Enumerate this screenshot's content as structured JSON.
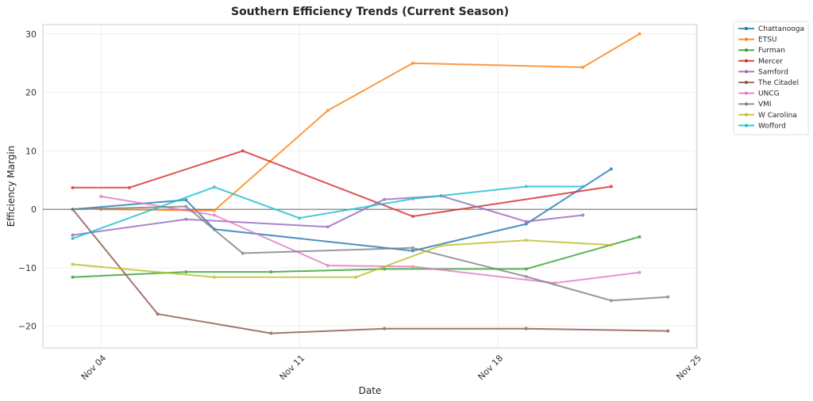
{
  "chart_data": {
    "type": "line",
    "title": "Southern Efficiency Trends (Current Season)",
    "xlabel": "Date",
    "ylabel": "Efficiency Margin",
    "x_unit": "day of November",
    "xlim": [
      1.95,
      25.03
    ],
    "ylim": [
      -23.7,
      31.6
    ],
    "x_ticks": [
      {
        "value": 4,
        "label": "Nov 04"
      },
      {
        "value": 11,
        "label": "Nov 11"
      },
      {
        "value": 18,
        "label": "Nov 18"
      },
      {
        "value": 25,
        "label": "Nov 25"
      }
    ],
    "y_ticks": [
      {
        "value": -20,
        "label": "−20"
      },
      {
        "value": -10,
        "label": "−10"
      },
      {
        "value": 0,
        "label": "0"
      },
      {
        "value": 10,
        "label": "10"
      },
      {
        "value": 20,
        "label": "20"
      },
      {
        "value": 30,
        "label": "30"
      }
    ],
    "grid": true,
    "zero_line": true,
    "legend_position": "outside-top-right",
    "series": [
      {
        "name": "Chattanooga",
        "color": "#1f77b4",
        "x": [
          3,
          7,
          8,
          15,
          19,
          22
        ],
        "y": [
          0.0,
          1.6,
          -3.4,
          -7.1,
          -2.5,
          6.9
        ]
      },
      {
        "name": "ETSU",
        "color": "#ff7f0e",
        "x": [
          4,
          8,
          12,
          15,
          21,
          23
        ],
        "y": [
          0.0,
          -0.2,
          16.9,
          25.0,
          24.3,
          30.0
        ]
      },
      {
        "name": "Furman",
        "color": "#2ca02c",
        "x": [
          3,
          7,
          10,
          14,
          19,
          23
        ],
        "y": [
          -11.6,
          -10.7,
          -10.7,
          -10.2,
          -10.2,
          -4.7
        ]
      },
      {
        "name": "Mercer",
        "color": "#d62728",
        "x": [
          3,
          5,
          9,
          15,
          22
        ],
        "y": [
          3.7,
          3.7,
          10.0,
          -1.2,
          3.9
        ]
      },
      {
        "name": "Samford",
        "color": "#9467bd",
        "x": [
          3,
          7,
          12,
          14,
          16,
          19,
          21
        ],
        "y": [
          -4.4,
          -1.7,
          -3.0,
          1.7,
          2.3,
          -2.1,
          -1.0
        ]
      },
      {
        "name": "The Citadel",
        "color": "#8c564b",
        "x": [
          3,
          6,
          10,
          14,
          19,
          24
        ],
        "y": [
          0.0,
          -17.9,
          -21.2,
          -20.4,
          -20.4,
          -20.8
        ]
      },
      {
        "name": "UNCG",
        "color": "#e377c2",
        "x": [
          4,
          8,
          12,
          15,
          20,
          23
        ],
        "y": [
          2.2,
          -1.0,
          -9.6,
          -9.8,
          -12.6,
          -10.8
        ]
      },
      {
        "name": "VMI",
        "color": "#7f7f7f",
        "x": [
          3,
          7,
          9,
          15,
          19,
          22,
          24
        ],
        "y": [
          0.0,
          0.5,
          -7.5,
          -6.6,
          -11.5,
          -15.6,
          -15.0
        ]
      },
      {
        "name": "W Carolina",
        "color": "#bcbd22",
        "x": [
          3,
          8,
          13,
          16,
          19,
          22
        ],
        "y": [
          -9.4,
          -11.6,
          -11.6,
          -6.2,
          -5.3,
          -6.1
        ]
      },
      {
        "name": "Wofford",
        "color": "#17becf",
        "x": [
          3,
          8,
          11,
          15,
          19,
          21
        ],
        "y": [
          -5.0,
          3.8,
          -1.5,
          1.8,
          3.9,
          3.9
        ]
      }
    ]
  }
}
